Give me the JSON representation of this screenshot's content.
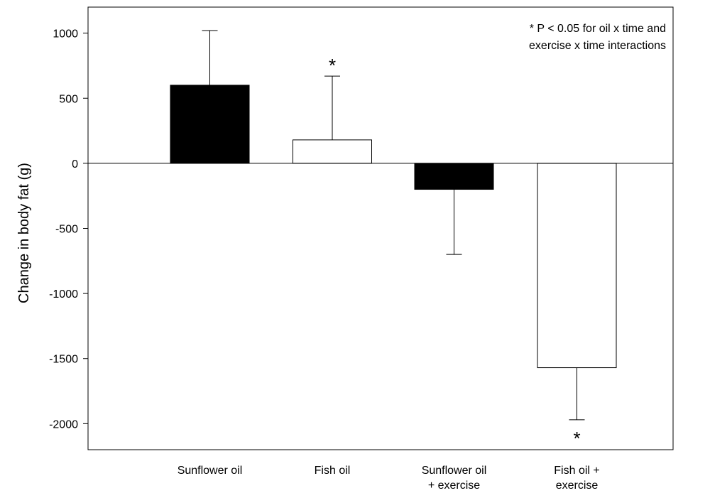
{
  "chart_data": {
    "type": "bar",
    "title": "",
    "xlabel": "",
    "ylabel": "Change in body fat (g)",
    "ylim": [
      -2200,
      1200
    ],
    "yticks": [
      1000,
      500,
      0,
      -500,
      -1000,
      -1500,
      -2000
    ],
    "grid": false,
    "categories": [
      [
        "Sunflower oil"
      ],
      [
        "Fish oil"
      ],
      [
        "Sunflower oil",
        "+ exercise"
      ],
      [
        "Fish oil +",
        "exercise"
      ]
    ],
    "values": [
      600,
      180,
      -200,
      -1570
    ],
    "errors": [
      420,
      490,
      500,
      400
    ],
    "bar_colors": [
      "#000000",
      "#ffffff",
      "#000000",
      "#ffffff"
    ],
    "significance_markers": [
      "",
      "*",
      "",
      "*"
    ],
    "annotation": {
      "lines": [
        "* P < 0.05 for oil x time and",
        "exercise x time interactions"
      ],
      "placement": "top-right"
    }
  }
}
